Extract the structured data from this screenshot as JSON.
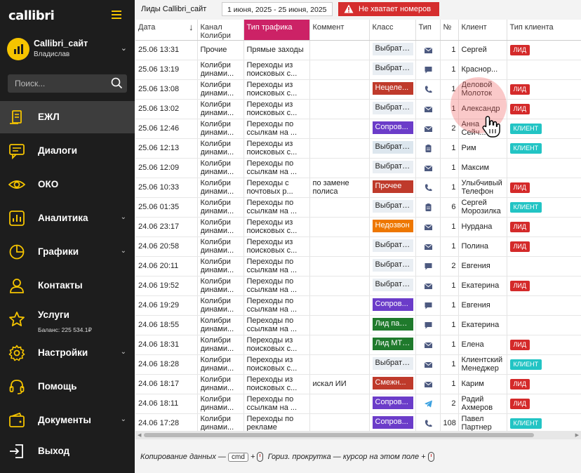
{
  "sidebar": {
    "logo_text": "callibri",
    "account": {
      "name": "Callibri_сайт",
      "user": "Владислав"
    },
    "search": {
      "placeholder": "Поиск..."
    },
    "items": [
      {
        "label": "ЕЖЛ",
        "icon": "log-icon",
        "active": true
      },
      {
        "label": "Диалоги",
        "icon": "chat-icon"
      },
      {
        "label": "ОКО",
        "icon": "eye-icon"
      },
      {
        "label": "Аналитика",
        "icon": "analytics-icon",
        "chevron": true
      },
      {
        "label": "Графики",
        "icon": "pie-chart-icon",
        "chevron": true
      },
      {
        "label": "Контакты",
        "icon": "person-icon"
      },
      {
        "label": "Услуги",
        "icon": "star-icon",
        "sub": "Баланс: 225 534.1₽"
      },
      {
        "label": "Настройки",
        "icon": "gear-icon",
        "chevron": true
      },
      {
        "label": "Помощь",
        "icon": "headset-icon"
      },
      {
        "label": "Документы",
        "icon": "wallet-icon",
        "chevron": true
      },
      {
        "label": "Выход",
        "icon": "logout-icon"
      }
    ]
  },
  "topbar": {
    "title": "Лиды Callibri_сайт",
    "date_range": "1 июня, 2025 - 25 июня, 2025",
    "alert": "Не хватает номеров"
  },
  "table": {
    "columns": [
      "Дата",
      "Канал Колибри",
      "Тип трафика",
      "Коммент",
      "Класс",
      "Тип",
      "№",
      "Клиент",
      "Тип клиента"
    ],
    "sort_arrow": "↓",
    "rows": [
      {
        "date": "25.06 13:31",
        "channel": "Прочие",
        "traffic": "Прямые заходы",
        "comment": "",
        "cls": "Выбрать ...",
        "cls_style": "",
        "type": "mail-icon",
        "num": "1",
        "client": "Сергей",
        "ctype": "ЛИД"
      },
      {
        "date": "25.06 13:19",
        "channel": "Колибри динами...",
        "traffic": "Переходы из поисковых с...",
        "comment": "",
        "cls": "Выбрать ...",
        "cls_style": "",
        "type": "chat-bubble-icon",
        "num": "1",
        "client": "Краснор...",
        "ctype": ""
      },
      {
        "date": "25.06 13:08",
        "channel": "Колибри динами...",
        "traffic": "Переходы из поисковых с...",
        "comment": "",
        "cls": "Нецеле...",
        "cls_style": "red",
        "type": "phone-icon",
        "num": "1",
        "client": "Деловой Молоток",
        "ctype": "ЛИД"
      },
      {
        "date": "25.06 13:02",
        "channel": "Колибри динами...",
        "traffic": "Переходы из поисковых с...",
        "comment": "",
        "cls": "Выбрать ...",
        "cls_style": "",
        "type": "mail-icon",
        "num": "1",
        "client": "Александр",
        "ctype": "ЛИД"
      },
      {
        "date": "25.06 12:46",
        "channel": "Колибри динами...",
        "traffic": "Переходы по ссылкам на ...",
        "comment": "",
        "cls": "Сопров...",
        "cls_style": "purple",
        "type": "mail-icon",
        "num": "2",
        "client": "Анна Сейч...",
        "ctype": "КЛИЕНТ"
      },
      {
        "date": "25.06 12:13",
        "channel": "Колибри динами...",
        "traffic": "Переходы из поисковых с...",
        "comment": "",
        "cls": "Выбрать ...",
        "cls_style": "lightblue",
        "type": "form-icon",
        "num": "1",
        "client": "Рим",
        "ctype": "КЛИЕНТ"
      },
      {
        "date": "25.06 12:09",
        "channel": "Колибри динами...",
        "traffic": "Переходы по ссылкам на ...",
        "comment": "",
        "cls": "Выбрать ...",
        "cls_style": "",
        "type": "mail-icon",
        "num": "1",
        "client": "Максим",
        "ctype": ""
      },
      {
        "date": "25.06 10:33",
        "channel": "Колибри динами...",
        "traffic": "Переходы с почтовых р...",
        "comment": "по замене полиса",
        "cls": "Прочее",
        "cls_style": "red",
        "type": "phone-icon",
        "num": "1",
        "client": "Улыбчивый Телефон",
        "ctype": "ЛИД"
      },
      {
        "date": "25.06 01:35",
        "channel": "Колибри динами...",
        "traffic": "Переходы по ссылкам на ...",
        "comment": "",
        "cls": "Выбрать ...",
        "cls_style": "",
        "type": "form-icon",
        "num": "6",
        "client": "Сергей Морозилка",
        "ctype": "КЛИЕНТ"
      },
      {
        "date": "24.06 23:17",
        "channel": "Колибри динами...",
        "traffic": "Переходы из поисковых с...",
        "comment": "",
        "cls": "Недозвон",
        "cls_style": "orange",
        "type": "mail-icon",
        "num": "1",
        "client": "Нурдана",
        "ctype": "ЛИД"
      },
      {
        "date": "24.06 20:58",
        "channel": "Колибри динами...",
        "traffic": "Переходы из поисковых с...",
        "comment": "",
        "cls": "Выбрать ...",
        "cls_style": "",
        "type": "mail-icon",
        "num": "1",
        "client": "Полина",
        "ctype": "ЛИД"
      },
      {
        "date": "24.06 20:11",
        "channel": "Колибри динами...",
        "traffic": "Переходы по ссылкам на ...",
        "comment": "",
        "cls": "Выбрать ...",
        "cls_style": "",
        "type": "chat-bubble-icon",
        "num": "2",
        "client": "Евгения",
        "ctype": ""
      },
      {
        "date": "24.06 19:52",
        "channel": "Колибри динами...",
        "traffic": "Переходы по ссылкам на ...",
        "comment": "",
        "cls": "Выбрать ...",
        "cls_style": "",
        "type": "mail-icon",
        "num": "1",
        "client": "Екатерина",
        "ctype": "ЛИД"
      },
      {
        "date": "24.06 19:29",
        "channel": "Колибри динами...",
        "traffic": "Переходы по ссылкам на ...",
        "comment": "",
        "cls": "Сопров...",
        "cls_style": "purple",
        "type": "chat-bubble-icon",
        "num": "1",
        "client": "Евгения",
        "ctype": ""
      },
      {
        "date": "24.06 18:55",
        "channel": "Колибри динами...",
        "traffic": "Переходы по ссылкам на ...",
        "comment": "",
        "cls": "Лид пар...",
        "cls_style": "green",
        "type": "chat-bubble-icon",
        "num": "1",
        "client": "Екатерина",
        "ctype": ""
      },
      {
        "date": "24.06 18:31",
        "channel": "Колибри динами...",
        "traffic": "Переходы из поисковых с...",
        "comment": "",
        "cls": "Лид МТ ...",
        "cls_style": "green",
        "type": "mail-icon",
        "num": "1",
        "client": "Елена",
        "ctype": "ЛИД"
      },
      {
        "date": "24.06 18:28",
        "channel": "Колибри динами...",
        "traffic": "Переходы из поисковых с...",
        "comment": "",
        "cls": "Выбрать ...",
        "cls_style": "",
        "type": "mail-icon",
        "num": "1",
        "client": "Клиентский Менеджер",
        "ctype": "КЛИЕНТ"
      },
      {
        "date": "24.06 18:17",
        "channel": "Колибри динами...",
        "traffic": "Переходы из поисковых с...",
        "comment": "искал ИИ",
        "cls": "Смежн...",
        "cls_style": "red",
        "type": "mail-icon",
        "num": "1",
        "client": "Карим",
        "ctype": "ЛИД"
      },
      {
        "date": "24.06 18:11",
        "channel": "Колибри динами...",
        "traffic": "Переходы по ссылкам на ...",
        "comment": "",
        "cls": "Сопров...",
        "cls_style": "purple",
        "type": "telegram-icon",
        "num": "2",
        "client": "Радий Ахмеров",
        "ctype": "ЛИД"
      },
      {
        "date": "24.06 17:28",
        "channel": "Колибри динами...",
        "traffic": "Переходы по рекламе",
        "comment": "",
        "cls": "Сопров...",
        "cls_style": "purple",
        "type": "phone-icon",
        "num": "108",
        "client": "Павел Партнер",
        "ctype": "КЛИЕНТ"
      }
    ]
  },
  "footer": {
    "copy_text": "Копирование данных —",
    "copy_key": "cmd",
    "scroll_text": "Гориз. прокрутка — курсор на этом поле +"
  },
  "colors": {
    "brand": "#f5c400",
    "sidebar_bg": "#1d1d1d",
    "lead": "#d42a2a",
    "client": "#22c4c4",
    "header_highlight": "#cc2266"
  }
}
